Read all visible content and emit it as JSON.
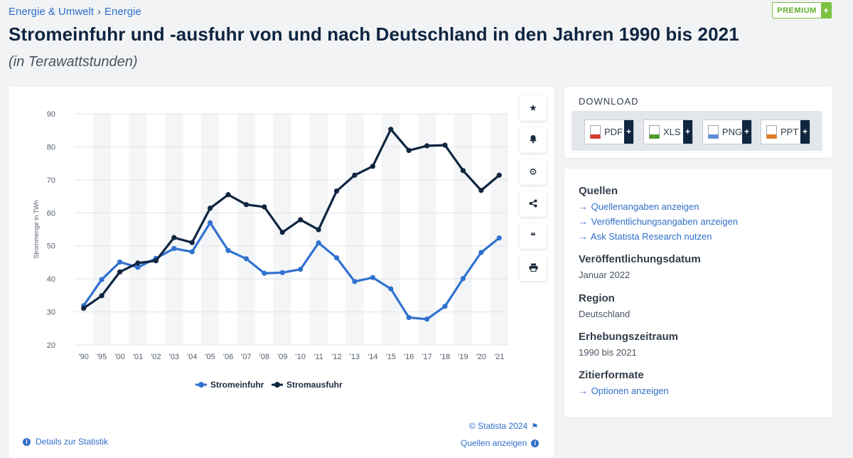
{
  "breadcrumb": {
    "items": [
      "Energie & Umwelt",
      "Energie"
    ],
    "separator": "›"
  },
  "header": {
    "title": "Stromeinfuhr und -ausfuhr von und nach Deutschland in den Jahren 1990 bis 2021",
    "subtitle": "(in Terawattstunden)",
    "premium_label": "PREMIUM",
    "premium_plus": "+"
  },
  "chart_data": {
    "type": "line",
    "categories": [
      "'90",
      "'95",
      "'00",
      "'01",
      "'02",
      "'03",
      "'04",
      "'05",
      "'06",
      "'07",
      "'08",
      "'09",
      "'10",
      "'11",
      "'12",
      "'13",
      "'14",
      "'15",
      "'16",
      "'17",
      "'18",
      "'19",
      "'20",
      "'21"
    ],
    "series": [
      {
        "name": "Stromeinfuhr",
        "color": "#2f72d0",
        "values": [
          31.9,
          39.8,
          45.1,
          43.5,
          46.2,
          49.2,
          48.2,
          57.0,
          48.6,
          46.1,
          41.7,
          41.9,
          42.9,
          50.9,
          46.4,
          39.2,
          40.4,
          37.0,
          28.3,
          27.8,
          31.7,
          40.1,
          48.0,
          52.4
        ]
      },
      {
        "name": "Stromausfuhr",
        "color": "#0f2540",
        "values": [
          31.1,
          34.9,
          42.1,
          44.8,
          45.5,
          52.5,
          51.0,
          61.4,
          65.5,
          62.5,
          61.8,
          54.1,
          57.9,
          54.9,
          66.6,
          71.4,
          74.1,
          85.3,
          78.9,
          80.3,
          80.5,
          72.8,
          66.8,
          71.4
        ]
      }
    ],
    "ylabel": "Strommenge in TWh",
    "ylim": [
      20,
      90
    ],
    "yticks": [
      20,
      30,
      40,
      50,
      60,
      70,
      80,
      90
    ],
    "grid": true,
    "legend": "bottom"
  },
  "chart_footer": {
    "copyright": "© Statista 2024",
    "details_label": "Details zur Statistik",
    "sources_label": "Quellen anzeigen"
  },
  "tools": [
    {
      "name": "favorite-icon",
      "glyph": "★"
    },
    {
      "name": "bell-icon",
      "glyph": "🔔"
    },
    {
      "name": "settings-icon",
      "glyph": "⚙"
    },
    {
      "name": "share-icon",
      "glyph": "⋖"
    },
    {
      "name": "quote-icon",
      "glyph": "❝"
    },
    {
      "name": "print-icon",
      "glyph": "⎙"
    }
  ],
  "download": {
    "title": "DOWNLOAD",
    "buttons": [
      {
        "label": "PDF",
        "color": "#d33a2c"
      },
      {
        "label": "XLS",
        "color": "#4c9a2a"
      },
      {
        "label": "PNG",
        "color": "#5b8fd6"
      },
      {
        "label": "PPT",
        "color": "#e07b24"
      }
    ],
    "plus": "+"
  },
  "info": {
    "sources_heading": "Quellen",
    "source_links": [
      "Quellenangaben anzeigen",
      "Veröffentlichungsangaben anzeigen",
      "Ask Statista Research nutzen"
    ],
    "release_heading": "Veröffentlichungsdatum",
    "release_value": "Januar 2022",
    "region_heading": "Region",
    "region_value": "Deutschland",
    "period_heading": "Erhebungszeitraum",
    "period_value": "1990 bis 2021",
    "citation_heading": "Zitierformate",
    "citation_link": "Optionen anzeigen",
    "link_arrow": "→"
  }
}
